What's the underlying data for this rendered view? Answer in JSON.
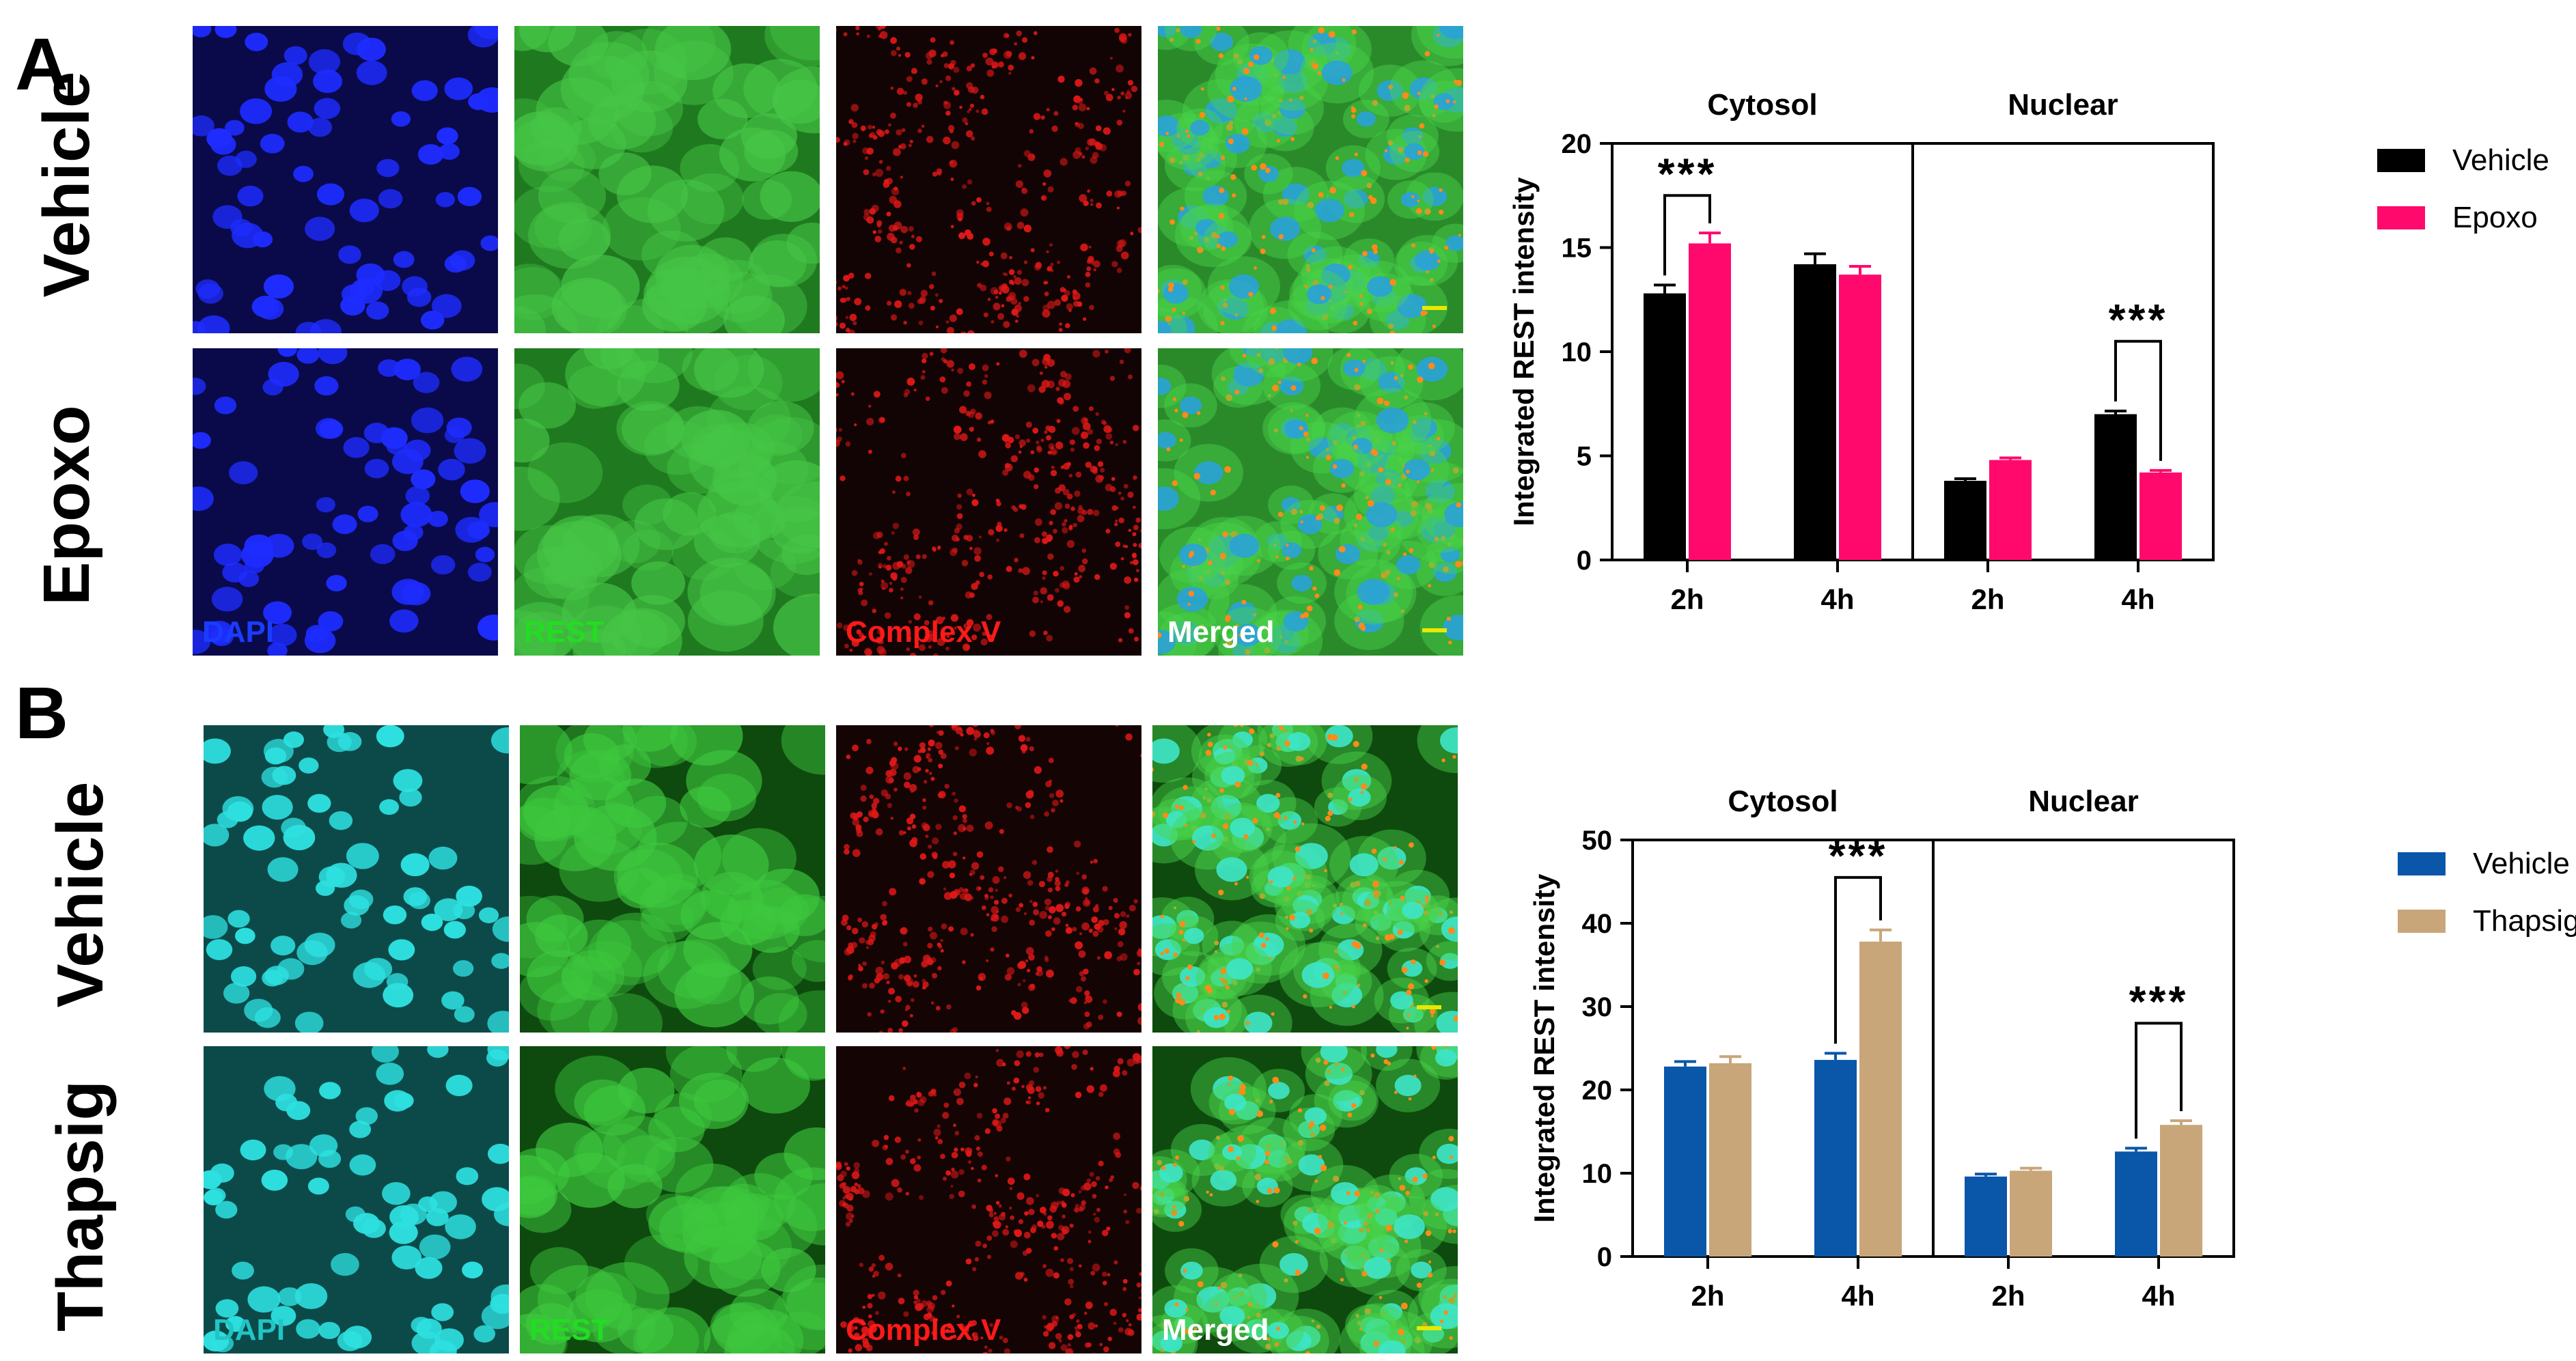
{
  "figure": {
    "panels": [
      {
        "letter": "A",
        "rows": [
          "Vehicle",
          "Epoxo"
        ],
        "channels": [
          {
            "label": "DAPI",
            "label_color": "#1a3cff"
          },
          {
            "label": "REST",
            "label_color": "#22dd22"
          },
          {
            "label": "Complex V",
            "label_color": "#ff1a1a"
          },
          {
            "label": "Merged",
            "label_color": "#ffffff"
          }
        ],
        "image_colors": {
          "dapi_bg": "#0a0a4a",
          "dapi_cell": "#1e2cff",
          "rest_bg": "#1f7a1f",
          "rest_cell": "#46c646",
          "cv_bg": "#120404",
          "cv_cell": "#e01818",
          "merged_bg": "#2a8a2a",
          "merged_nuc": "#2aa2d8"
        }
      },
      {
        "letter": "B",
        "rows": [
          "Vehicle",
          "Thapsig"
        ],
        "channels": [
          {
            "label": "DAPI",
            "label_color": "#22c4c4"
          },
          {
            "label": "REST",
            "label_color": "#22dd22"
          },
          {
            "label": "Complex V",
            "label_color": "#ff1a1a"
          },
          {
            "label": "Merged",
            "label_color": "#ffffff"
          }
        ],
        "image_colors": {
          "dapi_bg": "#0c4a4a",
          "dapi_cell": "#2ee0e0",
          "rest_bg": "#0e4a0e",
          "rest_cell": "#3ec83e",
          "cv_bg": "#140404",
          "cv_cell": "#e01818",
          "merged_bg": "#0e4a0e",
          "merged_nuc": "#3ee6c8"
        }
      }
    ]
  },
  "chart_data": [
    {
      "type": "bar",
      "sections": [
        "Cytosol",
        "Nuclear"
      ],
      "categories": [
        "2h",
        "4h",
        "2h",
        "4h"
      ],
      "ylabel": "Integrated REST intensity",
      "ylim": [
        0,
        20
      ],
      "yticks": [
        "0",
        "5",
        "10",
        "15",
        "20"
      ],
      "series": [
        {
          "name": "Vehicle",
          "color": "#000000",
          "values": [
            12.8,
            14.2,
            3.8,
            7.0
          ],
          "errors": [
            0.4,
            0.5,
            0.1,
            0.15
          ]
        },
        {
          "name": "Epoxo",
          "color": "#ff0a6c",
          "values": [
            15.2,
            13.7,
            4.8,
            4.2
          ],
          "errors": [
            0.5,
            0.4,
            0.1,
            0.1
          ]
        }
      ],
      "significance": [
        {
          "category": 0,
          "label": "***",
          "y": 17.5
        },
        {
          "category": 3,
          "label": "***",
          "y": 10.5
        }
      ]
    },
    {
      "type": "bar",
      "sections": [
        "Cytosol",
        "Nuclear"
      ],
      "categories": [
        "2h",
        "4h",
        "2h",
        "4h"
      ],
      "ylabel": "Integrated REST intensity",
      "ylim": [
        0,
        50
      ],
      "yticks": [
        "0",
        "10",
        "20",
        "30",
        "40",
        "50"
      ],
      "series": [
        {
          "name": "Vehicle",
          "color": "#0a56a8",
          "values": [
            22.8,
            23.6,
            9.6,
            12.6
          ],
          "errors": [
            0.6,
            0.8,
            0.3,
            0.4
          ]
        },
        {
          "name": "Thapsig",
          "color": "#c8a67a",
          "values": [
            23.2,
            37.8,
            10.3,
            15.8
          ],
          "errors": [
            0.8,
            1.4,
            0.3,
            0.5
          ]
        }
      ],
      "significance": [
        {
          "category": 1,
          "label": "***",
          "y": 45.5
        },
        {
          "category": 3,
          "label": "***",
          "y": 28.0
        }
      ]
    }
  ]
}
